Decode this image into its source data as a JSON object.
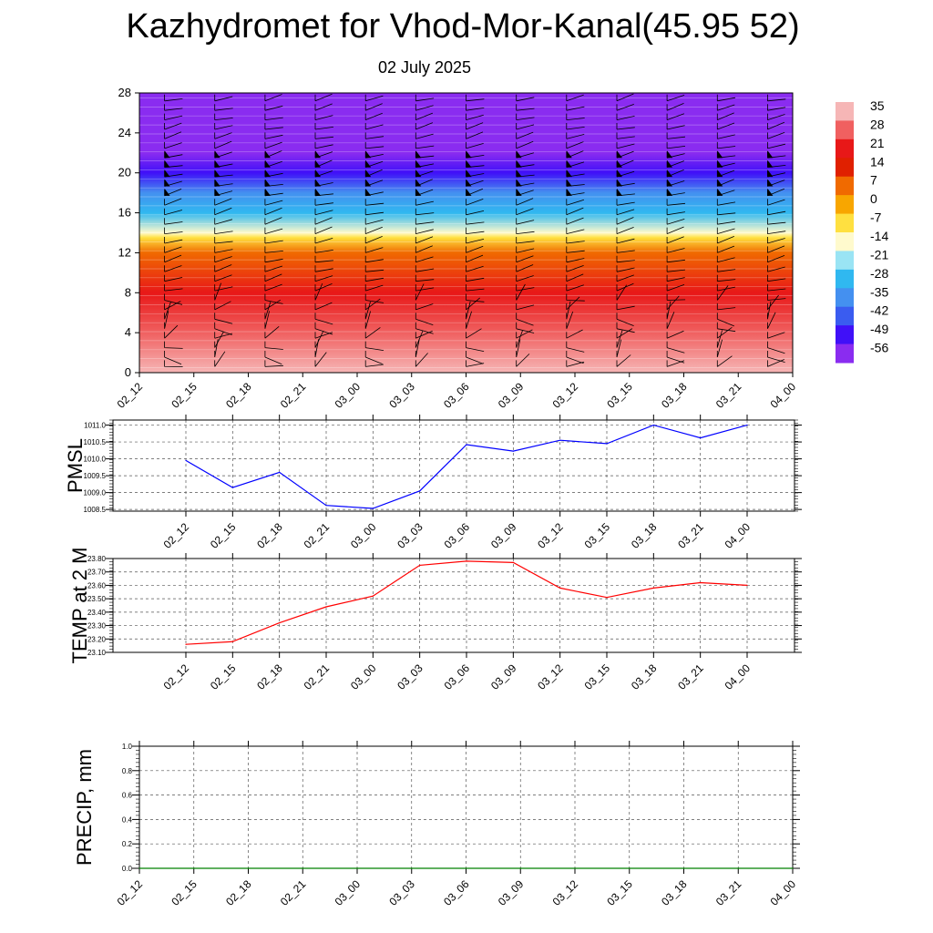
{
  "title": "Kazhydromet for Vhod-Mor-Kanal(45.95 52)",
  "subtitle": "02 July 2025",
  "chart_data": [
    {
      "type": "heatmap",
      "title": "",
      "xlabel": "",
      "ylabel": "",
      "x_ticks": [
        "02_12",
        "02_15",
        "02_18",
        "02_21",
        "03_00",
        "03_03",
        "03_06",
        "03_09",
        "03_12",
        "03_15",
        "03_18",
        "03_21",
        "04_00"
      ],
      "y_ticks": [
        0,
        4,
        8,
        12,
        16,
        20,
        24,
        28
      ],
      "ylim": [
        0,
        28
      ],
      "colorbar": {
        "labels": [
          "35",
          "28",
          "21",
          "14",
          "7",
          "0",
          "-7",
          "-14",
          "-21",
          "-28",
          "-35",
          "-42",
          "-49",
          "-56"
        ],
        "colors": [
          "#f6b6b6",
          "#f06060",
          "#e81818",
          "#e02000",
          "#f06a00",
          "#f8a600",
          "#ffe040",
          "#fffacd",
          "#9ae4f4",
          "#30b8f0",
          "#4490f0",
          "#3a5cf0",
          "#4010f8",
          "#8a2cf0"
        ]
      },
      "temperature_profile": [
        {
          "height": 0,
          "value": 30
        },
        {
          "height": 4,
          "value": 27
        },
        {
          "height": 8,
          "value": 20
        },
        {
          "height": 12,
          "value": 7
        },
        {
          "height": 13.5,
          "value": -7
        },
        {
          "height": 14,
          "value": -15
        },
        {
          "height": 16,
          "value": -26
        },
        {
          "height": 18,
          "value": -35
        },
        {
          "height": 20,
          "value": -45
        },
        {
          "height": 22,
          "value": -56
        },
        {
          "height": 24,
          "value": -60
        },
        {
          "height": 28,
          "value": -60
        }
      ],
      "wind_barbs": true
    },
    {
      "type": "line",
      "ylabel": "PMSL",
      "x": [
        "02_12",
        "02_15",
        "02_18",
        "02_21",
        "03_00",
        "03_03",
        "03_06",
        "03_09",
        "03_12",
        "03_15",
        "03_18",
        "03_21",
        "04_00"
      ],
      "series": [
        {
          "color": "#0000ff",
          "values": [
            1009.95,
            1009.15,
            1009.6,
            1008.62,
            1008.53,
            1009.05,
            1010.42,
            1010.23,
            1010.55,
            1010.45,
            1011.0,
            1010.62,
            1011.0
          ]
        }
      ],
      "ylim": [
        1008.45,
        1011.15
      ],
      "y_ticks": [
        "1008.5",
        "1009.0",
        "1009.5",
        "1010.0",
        "1010.5",
        "1011.0"
      ],
      "grid": true
    },
    {
      "type": "line",
      "ylabel": "TEMP at 2 M",
      "x": [
        "02_12",
        "02_15",
        "02_18",
        "02_21",
        "03_00",
        "03_03",
        "03_06",
        "03_09",
        "03_12",
        "03_15",
        "03_18",
        "03_21",
        "04_00"
      ],
      "series": [
        {
          "color": "#ff0000",
          "values": [
            23.16,
            23.18,
            23.32,
            23.44,
            23.52,
            23.75,
            23.78,
            23.77,
            23.58,
            23.51,
            23.58,
            23.62,
            23.6
          ]
        }
      ],
      "ylim": [
        23.1,
        23.8
      ],
      "y_ticks": [
        "23.10",
        "23.20",
        "23.30",
        "23.40",
        "23.50",
        "23.60",
        "23.70",
        "23.80"
      ],
      "grid": true
    },
    {
      "type": "line",
      "ylabel": "PRECIP, mm",
      "x": [
        "02_12",
        "02_15",
        "02_18",
        "02_21",
        "03_00",
        "03_03",
        "03_06",
        "03_09",
        "03_12",
        "03_15",
        "03_18",
        "03_21",
        "04_00"
      ],
      "series": [
        {
          "color": "#008000",
          "values": [
            0,
            0,
            0,
            0,
            0,
            0,
            0,
            0,
            0,
            0,
            0,
            0,
            0
          ]
        }
      ],
      "ylim": [
        0,
        1
      ],
      "y_ticks": [
        "0.0",
        "0.2",
        "0.4",
        "0.6",
        "0.8",
        "1.0"
      ],
      "grid": true
    }
  ]
}
